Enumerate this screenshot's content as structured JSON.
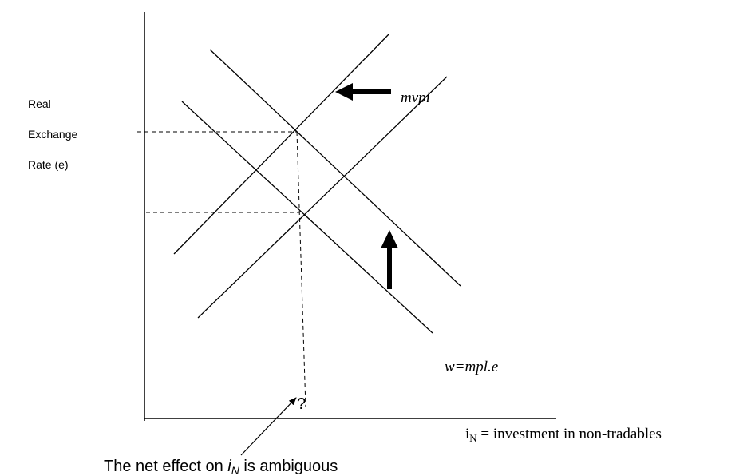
{
  "y_axis_label": [
    "Real",
    "Exchange",
    "Rate (e)"
  ],
  "curve_labels": {
    "supply": "mvpi",
    "demand": "w=mpl.e"
  },
  "x_marker": "?",
  "x_axis_label": {
    "var": "i",
    "sub": "N",
    "rest": " = investment in non-tradables"
  },
  "note": {
    "before": "The net effect on ",
    "var": "i",
    "sub": "N",
    "after": " is ambiguous"
  }
}
